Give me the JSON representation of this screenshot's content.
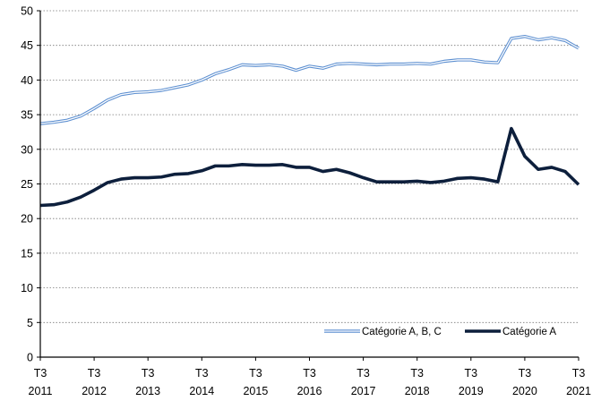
{
  "chart_data": {
    "type": "line",
    "ylim": [
      0,
      50
    ],
    "yticks": [
      0,
      5,
      10,
      15,
      20,
      25,
      30,
      35,
      40,
      45,
      50
    ],
    "x_tick_labels": [
      [
        "T3",
        "2011"
      ],
      [
        "T3",
        "2012"
      ],
      [
        "T3",
        "2013"
      ],
      [
        "T3",
        "2014"
      ],
      [
        "T3",
        "2015"
      ],
      [
        "T3",
        "2016"
      ],
      [
        "T3",
        "2017"
      ],
      [
        "T3",
        "2018"
      ],
      [
        "T3",
        "2019"
      ],
      [
        "T3",
        "2020"
      ],
      [
        "T3",
        "2021"
      ]
    ],
    "x": [
      "2011T3",
      "2011T4",
      "2012T1",
      "2012T2",
      "2012T3",
      "2012T4",
      "2013T1",
      "2013T2",
      "2013T3",
      "2013T4",
      "2014T1",
      "2014T2",
      "2014T3",
      "2014T4",
      "2015T1",
      "2015T2",
      "2015T3",
      "2015T4",
      "2016T1",
      "2016T2",
      "2016T3",
      "2016T4",
      "2017T1",
      "2017T2",
      "2017T3",
      "2017T4",
      "2018T1",
      "2018T2",
      "2018T3",
      "2018T4",
      "2019T1",
      "2019T2",
      "2019T3",
      "2019T4",
      "2020T1",
      "2020T2",
      "2020T3",
      "2020T4",
      "2021T1",
      "2021T2",
      "2021T3"
    ],
    "series": [
      {
        "name": "Catégorie A, B, C",
        "color": "#5b8ed0",
        "style": "double",
        "values": [
          33.7,
          33.9,
          34.2,
          34.8,
          35.9,
          37.1,
          37.9,
          38.2,
          38.3,
          38.5,
          38.9,
          39.3,
          40.0,
          40.9,
          41.5,
          42.2,
          42.1,
          42.2,
          42.0,
          41.4,
          42.0,
          41.7,
          42.3,
          42.4,
          42.3,
          42.2,
          42.3,
          42.3,
          42.4,
          42.3,
          42.7,
          42.9,
          42.9,
          42.6,
          42.5,
          46.0,
          46.3,
          45.8,
          46.1,
          45.7,
          44.6
        ]
      },
      {
        "name": "Catégorie A",
        "color": "#0d1f3c",
        "style": "thick",
        "values": [
          21.9,
          22.0,
          22.4,
          23.1,
          24.1,
          25.2,
          25.7,
          25.9,
          25.9,
          26.0,
          26.4,
          26.5,
          26.9,
          27.6,
          27.6,
          27.8,
          27.7,
          27.7,
          27.8,
          27.4,
          27.4,
          26.8,
          27.1,
          26.6,
          25.9,
          25.3,
          25.3,
          25.3,
          25.4,
          25.2,
          25.4,
          25.8,
          25.9,
          25.7,
          25.3,
          33.0,
          29.0,
          27.1,
          27.4,
          26.8,
          24.9
        ]
      }
    ],
    "legend": {
      "placement": "bottom-right"
    },
    "grid": "horizontal-dotted"
  }
}
